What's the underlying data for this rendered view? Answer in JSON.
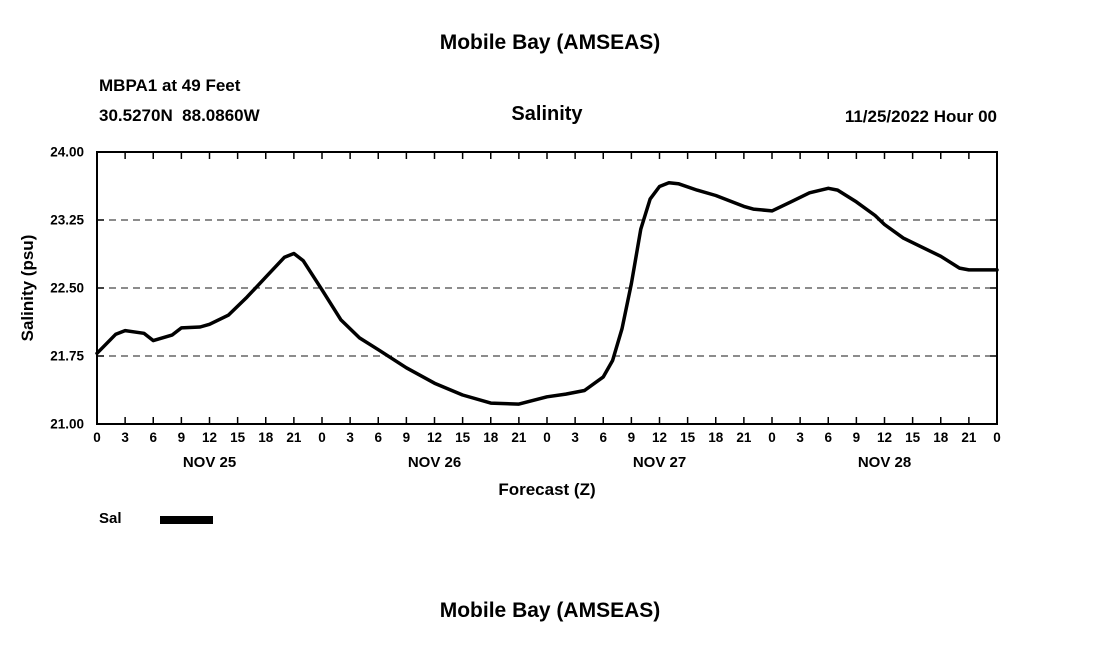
{
  "page": {
    "top_title": "Mobile Bay (AMSEAS)",
    "bottom_title": "Mobile Bay (AMSEAS)"
  },
  "header": {
    "station": "MBPA1 at 49 Feet",
    "coordinates": "30.5270N  88.0860W",
    "chart_title": "Salinity",
    "run_time": "11/25/2022 Hour 00"
  },
  "legend": {
    "label": "Sal",
    "color": "#000000"
  },
  "chart_data": {
    "type": "line",
    "title": "Mobile Bay (AMSEAS)",
    "subtitle": "Salinity",
    "xlabel": "Forecast (Z)",
    "ylabel": "Salinity (psu)",
    "xlim": [
      0,
      96
    ],
    "ylim": [
      21.0,
      24.0
    ],
    "x_unit": "hours (Z)",
    "xtick_interval": 3,
    "xtick_labels": [
      "0",
      "3",
      "6",
      "9",
      "12",
      "15",
      "18",
      "21",
      "0",
      "3",
      "6",
      "9",
      "12",
      "15",
      "18",
      "21",
      "0",
      "3",
      "6",
      "9",
      "12",
      "15",
      "18",
      "21",
      "0",
      "3",
      "6",
      "9",
      "12",
      "15",
      "18",
      "21",
      "0"
    ],
    "yticks": [
      21.0,
      21.75,
      22.5,
      23.25,
      24.0
    ],
    "ytick_labels": [
      "21.00",
      "21.75",
      "22.50",
      "23.25",
      "24.00"
    ],
    "day_labels": [
      {
        "label": "NOV 25",
        "center_hour": 12
      },
      {
        "label": "NOV 26",
        "center_hour": 36
      },
      {
        "label": "NOV 27",
        "center_hour": 60
      },
      {
        "label": "NOV 28",
        "center_hour": 84
      }
    ],
    "grid": "horizontal-dashed",
    "legend_position": "below-left",
    "series": [
      {
        "name": "Sal",
        "color": "#000000",
        "x": [
          0,
          2,
          3,
          5,
          6,
          8,
          9,
          11,
          12,
          14,
          16,
          18,
          20,
          21,
          22,
          24,
          26,
          28,
          30,
          33,
          36,
          39,
          42,
          45,
          48,
          50,
          52,
          54,
          55,
          56,
          57,
          58,
          59,
          60,
          61,
          62,
          64,
          66,
          69,
          70,
          72,
          74,
          76,
          78,
          79,
          81,
          83,
          84,
          86,
          88,
          90,
          92,
          93,
          96
        ],
        "y": [
          21.78,
          21.99,
          22.03,
          22.0,
          21.92,
          21.98,
          22.06,
          22.07,
          22.1,
          22.2,
          22.4,
          22.62,
          22.84,
          22.88,
          22.8,
          22.48,
          22.15,
          21.95,
          21.82,
          21.62,
          21.45,
          21.32,
          21.23,
          21.22,
          21.3,
          21.33,
          21.37,
          21.52,
          21.7,
          22.05,
          22.55,
          23.15,
          23.48,
          23.62,
          23.66,
          23.65,
          23.58,
          23.52,
          23.4,
          23.37,
          23.35,
          23.45,
          23.55,
          23.6,
          23.58,
          23.45,
          23.3,
          23.2,
          23.05,
          22.95,
          22.85,
          22.72,
          22.7,
          22.7
        ]
      }
    ]
  }
}
